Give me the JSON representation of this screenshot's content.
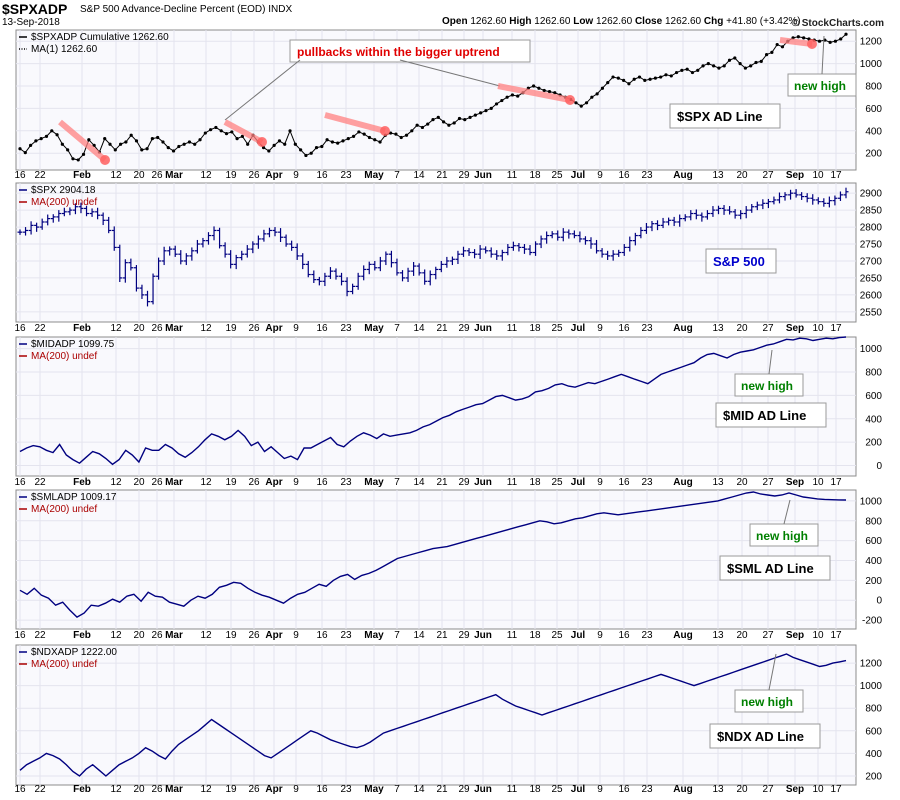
{
  "header": {
    "symbol": "$SPXADP",
    "description": "S&P 500 Advance-Decline Percent (EOD)",
    "exchange": "INDX",
    "date": "13-Sep-2018",
    "open_label": "Open",
    "open": "1262.60",
    "high_label": "High",
    "high": "1262.60",
    "low_label": "Low",
    "low": "1262.60",
    "close_label": "Close",
    "close": "1262.60",
    "chg_label": "Chg",
    "chg": "+41.80 (+3.42%)",
    "copyright": "© StockCharts.com"
  },
  "x_axis_labels": [
    "16",
    "22",
    "Feb",
    "12",
    "20",
    "26",
    "Mar",
    "12",
    "19",
    "26",
    "Apr",
    "9",
    "16",
    "23",
    "May",
    "7",
    "14",
    "21",
    "29",
    "Jun",
    "11",
    "18",
    "25",
    "Jul",
    "9",
    "16",
    "23",
    "Aug",
    "13",
    "20",
    "27",
    "Sep",
    "10",
    "17"
  ],
  "x_axis_bold": [
    "Feb",
    "Mar",
    "Apr",
    "May",
    "Jun",
    "Jul",
    "Aug",
    "Sep"
  ],
  "chart_data": [
    {
      "type": "line",
      "style": "dots",
      "color": "#000000",
      "legend": [
        "$SPXADP Cumulative 1262.60",
        "MA(1) 1262.60"
      ],
      "annotation_box": "$SPX AD Line",
      "callout_text": "pullbacks within the bigger uptrend",
      "callout_color": "#e00000",
      "new_high_text": "new high",
      "new_high_color": "#008000",
      "yticks": [
        200,
        400,
        600,
        800,
        1000,
        1200
      ],
      "ylim": [
        50,
        1300
      ],
      "values": [
        240,
        205,
        270,
        310,
        330,
        350,
        400,
        365,
        280,
        230,
        150,
        140,
        190,
        320,
        270,
        210,
        330,
        280,
        230,
        280,
        300,
        360,
        310,
        230,
        240,
        330,
        340,
        300,
        250,
        220,
        260,
        280,
        300,
        280,
        320,
        380,
        410,
        430,
        400,
        375,
        390,
        330,
        350,
        280,
        360,
        300,
        250,
        220,
        270,
        310,
        280,
        400,
        280,
        230,
        180,
        200,
        250,
        260,
        320,
        300,
        290,
        310,
        330,
        350,
        390,
        370,
        340,
        320,
        300,
        360,
        380,
        370,
        340,
        360,
        400,
        450,
        430,
        460,
        500,
        520,
        480,
        450,
        470,
        510,
        500,
        520,
        540,
        560,
        580,
        600,
        640,
        670,
        700,
        720,
        710,
        740,
        780,
        800,
        780,
        760,
        750,
        740,
        720,
        700,
        680,
        650,
        620,
        650,
        700,
        730,
        780,
        830,
        880,
        870,
        850,
        820,
        860,
        880,
        850,
        860,
        870,
        880,
        900,
        890,
        920,
        940,
        950,
        920,
        940,
        980,
        1000,
        980,
        960,
        980,
        1030,
        1050,
        1000,
        960,
        980,
        1010,
        1020,
        1080,
        1100,
        1170,
        1150,
        1200,
        1230,
        1240,
        1230,
        1220,
        1210,
        1200,
        1210,
        1190,
        1200,
        1220,
        1262.6
      ]
    },
    {
      "type": "ohlc",
      "color": "#000080",
      "legend": [
        "$SPX 2904.18",
        "MA(200) undef"
      ],
      "annotation_box": "S&P 500",
      "yticks": [
        2550,
        2600,
        2650,
        2700,
        2750,
        2800,
        2850,
        2900
      ],
      "ylim": [
        2520,
        2930
      ],
      "values": [
        2785,
        2790,
        2805,
        2800,
        2815,
        2825,
        2830,
        2840,
        2845,
        2850,
        2860,
        2855,
        2840,
        2845,
        2835,
        2820,
        2790,
        2740,
        2650,
        2695,
        2680,
        2620,
        2600,
        2580,
        2655,
        2700,
        2730,
        2735,
        2720,
        2700,
        2715,
        2730,
        2750,
        2760,
        2775,
        2790,
        2745,
        2720,
        2690,
        2710,
        2720,
        2735,
        2750,
        2765,
        2780,
        2790,
        2785,
        2770,
        2750,
        2740,
        2715,
        2690,
        2660,
        2645,
        2640,
        2655,
        2670,
        2655,
        2640,
        2610,
        2625,
        2655,
        2675,
        2690,
        2680,
        2700,
        2720,
        2695,
        2665,
        2650,
        2670,
        2685,
        2665,
        2640,
        2660,
        2675,
        2690,
        2700,
        2705,
        2720,
        2730,
        2725,
        2720,
        2735,
        2730,
        2720,
        2715,
        2725,
        2740,
        2745,
        2740,
        2735,
        2725,
        2750,
        2765,
        2775,
        2780,
        2770,
        2785,
        2780,
        2775,
        2765,
        2760,
        2750,
        2730,
        2720,
        2715,
        2720,
        2725,
        2740,
        2760,
        2775,
        2790,
        2800,
        2810,
        2805,
        2815,
        2820,
        2815,
        2825,
        2830,
        2840,
        2835,
        2830,
        2840,
        2850,
        2855,
        2850,
        2845,
        2835,
        2840,
        2850,
        2860,
        2865,
        2870,
        2875,
        2880,
        2890,
        2895,
        2900,
        2895,
        2890,
        2885,
        2880,
        2875,
        2870,
        2878,
        2885,
        2895,
        2904.18
      ]
    },
    {
      "type": "line",
      "color": "#000080",
      "legend": [
        "$MIDADP 1099.75",
        "MA(200) undef"
      ],
      "annotation_box": "$MID AD Line",
      "new_high_text": "new high",
      "new_high_color": "#008000",
      "yticks": [
        0,
        200,
        400,
        600,
        800,
        1000
      ],
      "ylim": [
        -90,
        1100
      ],
      "values": [
        120,
        150,
        170,
        160,
        130,
        110,
        180,
        90,
        50,
        20,
        70,
        120,
        100,
        60,
        10,
        50,
        130,
        90,
        30,
        150,
        130,
        130,
        180,
        150,
        100,
        70,
        110,
        160,
        220,
        270,
        250,
        220,
        250,
        300,
        250,
        170,
        200,
        120,
        160,
        110,
        60,
        80,
        50,
        150,
        150,
        180,
        210,
        240,
        180,
        160,
        210,
        250,
        280,
        260,
        230,
        270,
        250,
        260,
        270,
        280,
        300,
        330,
        350,
        380,
        410,
        430,
        460,
        480,
        500,
        520,
        530,
        560,
        590,
        600,
        580,
        560,
        570,
        590,
        630,
        640,
        660,
        690,
        700,
        680,
        670,
        690,
        710,
        700,
        720,
        740,
        760,
        780,
        760,
        740,
        720,
        700,
        740,
        780,
        800,
        820,
        840,
        860,
        880,
        920,
        950,
        960,
        940,
        920,
        950,
        970,
        980,
        990,
        1010,
        1030,
        1040,
        1060,
        1080,
        1075,
        1090,
        1085,
        1070,
        1080,
        1090,
        1085,
        1095,
        1099.75
      ]
    },
    {
      "type": "line",
      "color": "#000080",
      "legend": [
        "$SMLADP 1009.17",
        "MA(200) undef"
      ],
      "annotation_box": "$SML AD Line",
      "new_high_text": "new high",
      "new_high_color": "#008000",
      "yticks": [
        -200,
        0,
        200,
        400,
        600,
        800,
        1000
      ],
      "ylim": [
        -290,
        1110
      ],
      "values": [
        100,
        60,
        120,
        50,
        20,
        -50,
        -20,
        -100,
        -170,
        -130,
        -50,
        -60,
        -30,
        10,
        -20,
        40,
        60,
        -10,
        80,
        40,
        30,
        -20,
        -40,
        -60,
        0,
        40,
        20,
        60,
        130,
        150,
        180,
        170,
        120,
        80,
        50,
        30,
        0,
        -30,
        20,
        60,
        80,
        120,
        160,
        140,
        200,
        240,
        260,
        210,
        250,
        270,
        300,
        340,
        380,
        420,
        440,
        460,
        480,
        500,
        520,
        530,
        540,
        560,
        580,
        600,
        620,
        640,
        660,
        680,
        700,
        720,
        740,
        760,
        780,
        800,
        790,
        770,
        780,
        800,
        820,
        830,
        850,
        870,
        880,
        870,
        860,
        870,
        880,
        890,
        900,
        910,
        920,
        930,
        940,
        950,
        960,
        970,
        980,
        990,
        1000,
        1020,
        1040,
        1060,
        1080,
        1090,
        1070,
        1060,
        1050,
        1060,
        1080,
        1060,
        1040,
        1030,
        1020,
        1015,
        1012,
        1010,
        1009.17
      ]
    },
    {
      "type": "line",
      "color": "#000080",
      "legend": [
        "$NDXADP 1222.00",
        "MA(200) undef"
      ],
      "annotation_box": "$NDX AD Line",
      "new_high_text": "new high",
      "new_high_color": "#008000",
      "yticks": [
        200,
        400,
        600,
        800,
        1000,
        1200
      ],
      "ylim": [
        120,
        1360
      ],
      "values": [
        250,
        300,
        330,
        360,
        400,
        380,
        350,
        300,
        240,
        200,
        260,
        300,
        250,
        200,
        250,
        300,
        330,
        360,
        400,
        450,
        420,
        380,
        350,
        420,
        480,
        520,
        560,
        600,
        650,
        700,
        660,
        620,
        580,
        540,
        500,
        460,
        420,
        380,
        360,
        400,
        440,
        480,
        520,
        560,
        600,
        580,
        550,
        520,
        500,
        480,
        460,
        450,
        470,
        500,
        540,
        580,
        600,
        620,
        640,
        660,
        680,
        700,
        720,
        740,
        760,
        780,
        800,
        820,
        840,
        860,
        880,
        900,
        920,
        880,
        850,
        820,
        800,
        780,
        760,
        740,
        760,
        780,
        800,
        820,
        840,
        860,
        880,
        900,
        920,
        940,
        960,
        980,
        1000,
        1020,
        1040,
        1060,
        1080,
        1100,
        1080,
        1060,
        1040,
        1020,
        1000,
        1020,
        1040,
        1060,
        1080,
        1100,
        1120,
        1140,
        1160,
        1180,
        1200,
        1220,
        1240,
        1260,
        1280,
        1250,
        1230,
        1210,
        1190,
        1170,
        1180,
        1200,
        1210,
        1222
      ]
    }
  ]
}
